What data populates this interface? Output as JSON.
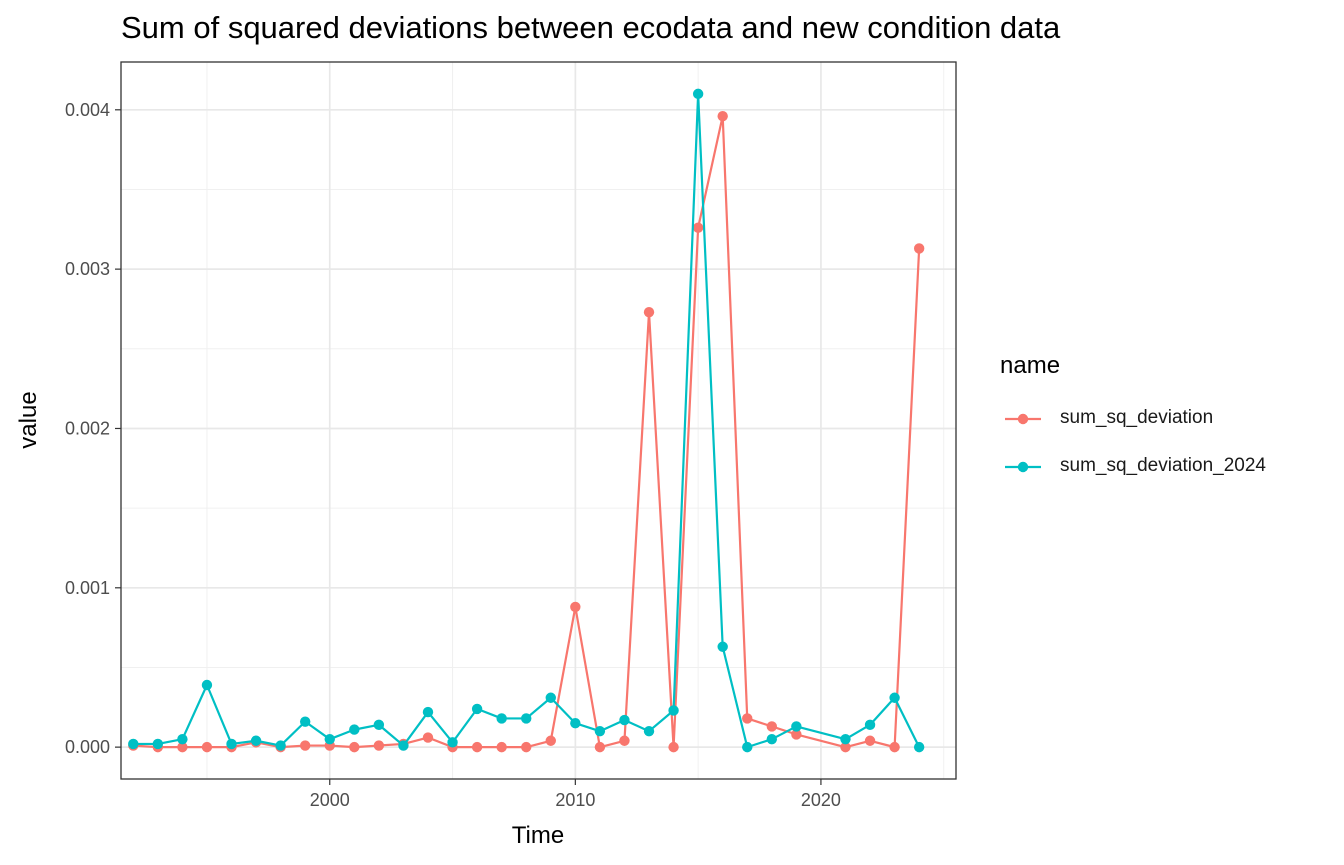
{
  "chart_data": {
    "type": "line",
    "title": "Sum of squared deviations between ecodata and new condition data",
    "xlabel": "Time",
    "ylabel": "value",
    "xlim": [
      1991.5,
      2025.5
    ],
    "ylim": [
      -0.0002,
      0.0043
    ],
    "x_ticks": [
      2000,
      2010,
      2020
    ],
    "x_tick_labels": [
      "2000",
      "2010",
      "2020"
    ],
    "y_ticks": [
      0,
      0.001,
      0.002,
      0.003,
      0.004
    ],
    "y_tick_labels": [
      "0.000",
      "0.001",
      "0.002",
      "0.003",
      "0.004"
    ],
    "grid": true,
    "legend": {
      "title": "name",
      "position": "right"
    },
    "series": [
      {
        "name": "sum_sq_deviation",
        "color": "#F8766D",
        "x": [
          1992,
          1993,
          1994,
          1995,
          1996,
          1997,
          1998,
          1999,
          2000,
          2001,
          2002,
          2003,
          2004,
          2005,
          2006,
          2007,
          2008,
          2009,
          2010,
          2011,
          2012,
          2013,
          2014,
          2015,
          2016,
          2017,
          2018,
          2019,
          2021,
          2022,
          2023,
          2024
        ],
        "values": [
          1e-05,
          0.0,
          0.0,
          0.0,
          0.0,
          3e-05,
          0.0,
          1e-05,
          1e-05,
          0.0,
          1e-05,
          2e-05,
          6e-05,
          0.0,
          0.0,
          0.0,
          0.0,
          4e-05,
          0.00088,
          0.0,
          4e-05,
          0.00273,
          0.0,
          0.00326,
          0.00396,
          0.00018,
          0.00013,
          8e-05,
          0.0,
          4e-05,
          0.0,
          0.00313
        ]
      },
      {
        "name": "sum_sq_deviation_2024",
        "color": "#00BFC4",
        "x": [
          1992,
          1993,
          1994,
          1995,
          1996,
          1997,
          1998,
          1999,
          2000,
          2001,
          2002,
          2003,
          2004,
          2005,
          2006,
          2007,
          2008,
          2009,
          2010,
          2011,
          2012,
          2013,
          2014,
          2015,
          2016,
          2017,
          2018,
          2019,
          2021,
          2022,
          2023,
          2024
        ],
        "values": [
          2e-05,
          2e-05,
          5e-05,
          0.00039,
          2e-05,
          4e-05,
          1e-05,
          0.00016,
          5e-05,
          0.00011,
          0.00014,
          1e-05,
          0.00022,
          3e-05,
          0.00024,
          0.00018,
          0.00018,
          0.00031,
          0.00015,
          0.0001,
          0.00017,
          0.0001,
          0.00023,
          0.0041,
          0.00063,
          0.0,
          5e-05,
          0.00013,
          5e-05,
          0.00014,
          0.00031,
          0.0
        ]
      }
    ]
  }
}
